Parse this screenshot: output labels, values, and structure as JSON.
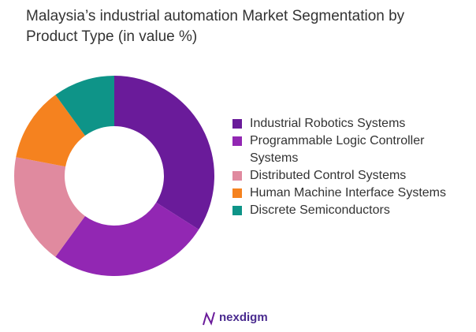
{
  "chart_data": {
    "type": "pie",
    "title": "Malaysia’s industrial automation Market Segmentation by Product Type (in value %)",
    "categories": [
      "Industrial Robotics Systems",
      "Programmable Logic Controller Systems",
      "Distributed Control Systems",
      "Human Machine Interface Systems",
      "Discrete Semiconductors"
    ],
    "values": [
      34,
      26,
      18,
      12,
      10
    ],
    "colors": [
      "#6a1b9a",
      "#9227b3",
      "#e08a9f",
      "#f5821f",
      "#0e9488"
    ],
    "legend": "right"
  },
  "brand": "nexdigm"
}
